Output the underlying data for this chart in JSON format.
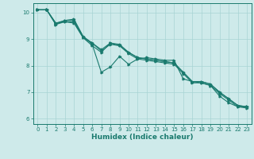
{
  "xlabel": "Humidex (Indice chaleur)",
  "xlim": [
    -0.5,
    23.5
  ],
  "ylim": [
    5.8,
    10.35
  ],
  "xticks": [
    0,
    1,
    2,
    3,
    4,
    5,
    6,
    7,
    8,
    9,
    10,
    11,
    12,
    13,
    14,
    15,
    16,
    17,
    18,
    19,
    20,
    21,
    22,
    23
  ],
  "yticks": [
    6,
    7,
    8,
    9,
    10
  ],
  "background_color": "#ceeaea",
  "grid_color": "#a8d4d4",
  "line_color": "#1a7a6e",
  "lines": [
    {
      "x": [
        0,
        1,
        2,
        3,
        4,
        5,
        6,
        7,
        8,
        9,
        10,
        11,
        12,
        13,
        14,
        15,
        16,
        17,
        18,
        19,
        20,
        21,
        22,
        23
      ],
      "y": [
        10.1,
        10.1,
        9.55,
        9.7,
        9.75,
        9.1,
        8.8,
        7.75,
        7.95,
        8.35,
        8.05,
        8.25,
        8.3,
        8.25,
        8.2,
        8.2,
        7.5,
        7.4,
        7.35,
        7.25,
        6.85,
        6.6,
        6.45,
        6.45
      ]
    },
    {
      "x": [
        0,
        1,
        2,
        3,
        4,
        5,
        6,
        7,
        8,
        9,
        10,
        11,
        12,
        13,
        14,
        15,
        16,
        17,
        18,
        19,
        20,
        21,
        22,
        23
      ],
      "y": [
        10.1,
        10.1,
        9.55,
        9.65,
        9.6,
        9.05,
        8.75,
        8.5,
        8.85,
        8.75,
        8.5,
        8.3,
        8.25,
        8.2,
        8.15,
        8.1,
        7.75,
        7.4,
        7.4,
        7.3,
        7.0,
        6.75,
        6.5,
        6.45
      ]
    },
    {
      "x": [
        0,
        1,
        2,
        3,
        4,
        5,
        6,
        7,
        8,
        9,
        10,
        11,
        12,
        13,
        14,
        15,
        16,
        17,
        18,
        19,
        20,
        21,
        22,
        23
      ],
      "y": [
        10.1,
        10.1,
        9.6,
        9.65,
        9.65,
        9.05,
        8.85,
        8.55,
        8.8,
        8.75,
        8.45,
        8.25,
        8.2,
        8.15,
        8.1,
        8.05,
        7.7,
        7.35,
        7.35,
        7.25,
        6.95,
        6.7,
        6.45,
        6.4
      ]
    },
    {
      "x": [
        0,
        1,
        2,
        3,
        4,
        5,
        6,
        7,
        8,
        9,
        10,
        11,
        12,
        13,
        14,
        15,
        16,
        17,
        18,
        19,
        20,
        21,
        22,
        23
      ],
      "y": [
        10.1,
        10.1,
        9.6,
        9.7,
        9.7,
        9.1,
        8.85,
        8.6,
        8.85,
        8.8,
        8.5,
        8.3,
        8.25,
        8.2,
        8.15,
        8.1,
        7.75,
        7.4,
        7.4,
        7.3,
        7.0,
        6.75,
        6.5,
        6.45
      ]
    }
  ]
}
